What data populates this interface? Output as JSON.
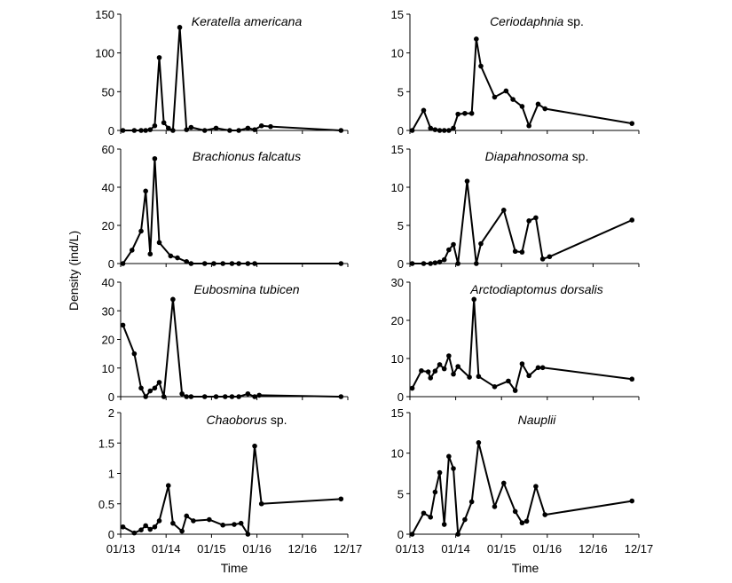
{
  "figure": {
    "ylabel": "Density (ind/L)",
    "xlabel": "Time"
  },
  "chart_data": [
    {
      "type": "line",
      "col": 0,
      "row": 0,
      "title": "Keratella americana",
      "title_suffix": "",
      "xticks": [
        "01/13",
        "01/14",
        "01/15",
        "01/16",
        "12/16",
        "12/17"
      ],
      "xlim": [
        0,
        5
      ],
      "ylim": [
        0,
        150
      ],
      "yticks": [
        0,
        50,
        100,
        150
      ],
      "x": [
        0.05,
        0.3,
        0.45,
        0.55,
        0.65,
        0.75,
        0.85,
        0.95,
        1.05,
        1.15,
        1.3,
        1.45,
        1.55,
        1.85,
        2.1,
        2.4,
        2.6,
        2.8,
        2.95,
        3.1,
        3.3,
        4.85
      ],
      "y": [
        0,
        0,
        0,
        0,
        1,
        6,
        94,
        10,
        3,
        0,
        133,
        1,
        4,
        0,
        3,
        0,
        0,
        3,
        1,
        6,
        5,
        0
      ]
    },
    {
      "type": "line",
      "col": 1,
      "row": 0,
      "title": "Ceriodaphnia",
      "title_suffix": " sp.",
      "xticks": [
        "01/13",
        "01/14",
        "01/15",
        "01/16",
        "12/16",
        "12/17"
      ],
      "xlim": [
        0,
        5
      ],
      "ylim": [
        0,
        15
      ],
      "yticks": [
        0,
        5,
        10,
        15
      ],
      "x": [
        0.05,
        0.3,
        0.45,
        0.55,
        0.65,
        0.75,
        0.85,
        0.95,
        1.05,
        1.2,
        1.35,
        1.45,
        1.55,
        1.85,
        2.1,
        2.25,
        2.45,
        2.6,
        2.8,
        2.95,
        4.85
      ],
      "y": [
        0,
        2.6,
        0.3,
        0.1,
        0,
        0,
        0,
        0.3,
        2.1,
        2.2,
        2.2,
        11.8,
        8.3,
        4.3,
        5.1,
        4,
        3.1,
        0.6,
        3.4,
        2.8,
        0.9
      ]
    },
    {
      "type": "line",
      "col": 0,
      "row": 1,
      "title": "Brachionus falcatus",
      "title_suffix": "",
      "xticks": [
        "01/13",
        "01/14",
        "01/15",
        "01/16",
        "12/16",
        "12/17"
      ],
      "xlim": [
        0,
        5
      ],
      "ylim": [
        0,
        60
      ],
      "yticks": [
        0,
        20,
        40,
        60
      ],
      "x": [
        0.05,
        0.25,
        0.45,
        0.55,
        0.65,
        0.75,
        0.85,
        1.1,
        1.25,
        1.45,
        1.55,
        1.85,
        2.05,
        2.25,
        2.45,
        2.6,
        2.8,
        2.95,
        4.85
      ],
      "y": [
        0,
        7,
        17,
        38,
        5,
        55,
        11,
        4,
        3,
        1,
        0,
        0,
        0,
        0,
        0,
        0,
        0,
        0,
        0
      ]
    },
    {
      "type": "line",
      "col": 1,
      "row": 1,
      "title": "Diapahnosoma",
      "title_suffix": " sp.",
      "xticks": [
        "01/13",
        "01/14",
        "01/15",
        "01/16",
        "12/16",
        "12/17"
      ],
      "xlim": [
        0,
        5
      ],
      "ylim": [
        0,
        15
      ],
      "yticks": [
        0,
        5,
        10,
        15
      ],
      "x": [
        0.05,
        0.3,
        0.45,
        0.55,
        0.65,
        0.75,
        0.85,
        0.95,
        1.05,
        1.25,
        1.45,
        1.55,
        2.05,
        2.3,
        2.45,
        2.6,
        2.75,
        2.9,
        3.05,
        4.85
      ],
      "y": [
        0,
        0,
        0,
        0.1,
        0.2,
        0.5,
        1.8,
        2.5,
        0,
        10.8,
        0,
        2.6,
        7,
        1.6,
        1.5,
        5.6,
        6,
        0.6,
        0.9,
        5.7
      ]
    },
    {
      "type": "line",
      "col": 0,
      "row": 2,
      "title": "Eubosmina tubicen",
      "title_suffix": "",
      "xticks": [
        "01/13",
        "01/14",
        "01/15",
        "01/16",
        "12/16",
        "12/17"
      ],
      "xlim": [
        0,
        5
      ],
      "ylim": [
        0,
        40
      ],
      "yticks": [
        0,
        10,
        20,
        30,
        40
      ],
      "x": [
        0.05,
        0.3,
        0.45,
        0.55,
        0.65,
        0.75,
        0.85,
        0.95,
        1.15,
        1.35,
        1.45,
        1.55,
        1.85,
        2.1,
        2.3,
        2.45,
        2.6,
        2.8,
        2.95,
        3.05,
        4.85
      ],
      "y": [
        25,
        15,
        3,
        0,
        2,
        3,
        5,
        0,
        34,
        1,
        0,
        0,
        0,
        0,
        0,
        0,
        0,
        1,
        0,
        0.5,
        0
      ]
    },
    {
      "type": "line",
      "col": 1,
      "row": 2,
      "title": "Arctodiaptomus dorsalis",
      "title_suffix": "",
      "xticks": [
        "01/13",
        "01/14",
        "01/15",
        "01/16",
        "12/16",
        "12/17"
      ],
      "xlim": [
        0,
        5
      ],
      "ylim": [
        0,
        30
      ],
      "yticks": [
        0,
        10,
        20,
        30
      ],
      "x": [
        0.05,
        0.25,
        0.4,
        0.45,
        0.55,
        0.65,
        0.75,
        0.85,
        0.95,
        1.05,
        1.3,
        1.4,
        1.5,
        1.85,
        2.15,
        2.3,
        2.45,
        2.6,
        2.8,
        2.9,
        4.85
      ],
      "y": [
        2.2,
        6.8,
        6.5,
        4.9,
        6.7,
        8.4,
        7.3,
        10.7,
        5.9,
        7.9,
        5.1,
        25.5,
        5.3,
        2.6,
        4.1,
        1.6,
        8.6,
        5.5,
        7.6,
        7.6,
        4.6
      ]
    },
    {
      "type": "line",
      "col": 0,
      "row": 3,
      "title": "Chaoborus",
      "title_suffix": " sp.",
      "xticks": [
        "01/13",
        "01/14",
        "01/15",
        "01/16",
        "12/16",
        "12/17"
      ],
      "xlim": [
        0,
        5
      ],
      "ylim": [
        0,
        2
      ],
      "yticks": [
        0,
        0.5,
        1,
        1.5,
        2
      ],
      "x": [
        0.05,
        0.3,
        0.45,
        0.55,
        0.65,
        0.75,
        0.85,
        1.05,
        1.15,
        1.35,
        1.45,
        1.6,
        1.95,
        2.25,
        2.5,
        2.65,
        2.8,
        2.95,
        3.1,
        4.85
      ],
      "y": [
        0.12,
        0.02,
        0.07,
        0.14,
        0.08,
        0.12,
        0.22,
        0.8,
        0.18,
        0.05,
        0.3,
        0.22,
        0.24,
        0.15,
        0.16,
        0.18,
        0,
        1.45,
        0.5,
        0.58
      ]
    },
    {
      "type": "line",
      "col": 1,
      "row": 3,
      "title": "Nauplii",
      "title_suffix": "",
      "xticks": [
        "01/13",
        "01/14",
        "01/15",
        "01/16",
        "12/16",
        "12/17"
      ],
      "xlim": [
        0,
        5
      ],
      "ylim": [
        0,
        15
      ],
      "yticks": [
        0,
        5,
        10,
        15
      ],
      "x": [
        0.05,
        0.3,
        0.45,
        0.55,
        0.65,
        0.75,
        0.85,
        0.95,
        1.05,
        1.2,
        1.35,
        1.5,
        1.85,
        2.05,
        2.3,
        2.45,
        2.55,
        2.75,
        2.95,
        4.85
      ],
      "y": [
        0,
        2.6,
        2.1,
        5.2,
        7.6,
        1.2,
        9.6,
        8.1,
        0,
        1.8,
        4,
        11.3,
        3.4,
        6.3,
        2.8,
        1.4,
        1.6,
        5.9,
        2.4,
        4.1
      ]
    }
  ]
}
